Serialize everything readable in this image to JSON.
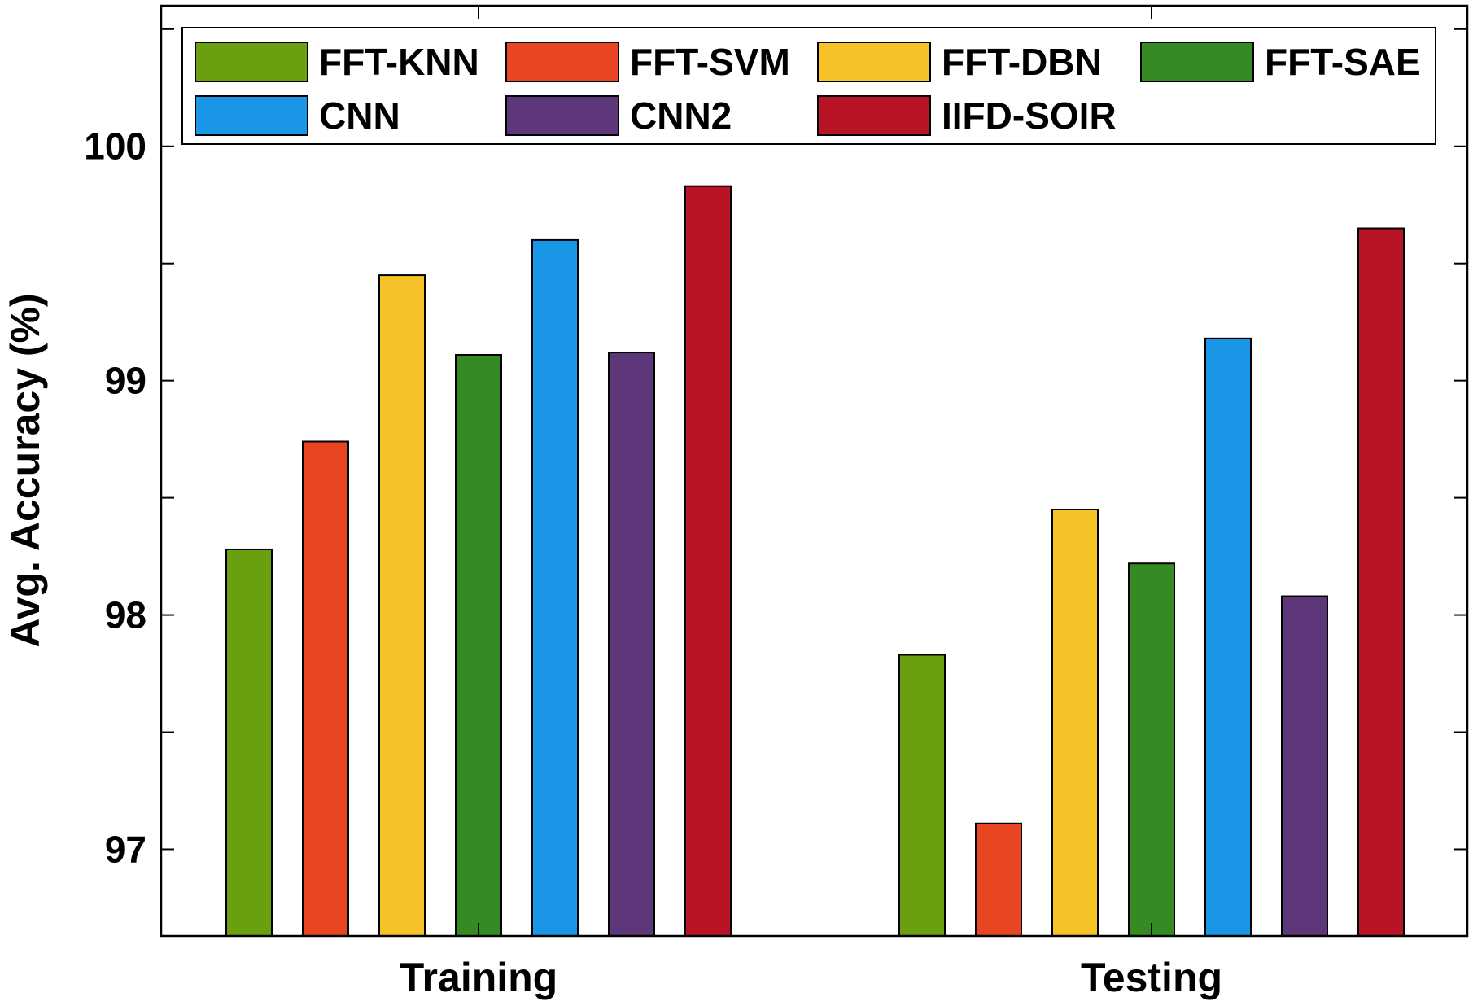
{
  "chart_data": {
    "type": "bar",
    "title": "",
    "xlabel": "",
    "ylabel": "Avg. Accuracy (%)",
    "ylim": [
      96.63,
      100.6
    ],
    "yticks": [
      97,
      98,
      99,
      100
    ],
    "categories": [
      "Training",
      "Testing"
    ],
    "series": [
      {
        "name": "FFT-KNN",
        "color": "#6aa010",
        "values": [
          98.28,
          97.83
        ]
      },
      {
        "name": "FFT-SVM",
        "color": "#e84523",
        "values": [
          98.74,
          97.11
        ]
      },
      {
        "name": "FFT-DBN",
        "color": "#f5c328",
        "values": [
          99.45,
          98.45
        ]
      },
      {
        "name": "FFT-SAE",
        "color": "#368a24",
        "values": [
          99.11,
          98.22
        ]
      },
      {
        "name": "CNN",
        "color": "#1a96e6",
        "values": [
          99.6,
          99.18
        ]
      },
      {
        "name": "CNN2",
        "color": "#5e377b",
        "values": [
          99.12,
          98.08
        ]
      },
      {
        "name": "IIFD-SOIR",
        "color": "#b81425",
        "values": [
          99.83,
          99.65
        ]
      }
    ],
    "legend": {
      "position": "top-inside",
      "columns": 4
    },
    "grid": false
  }
}
